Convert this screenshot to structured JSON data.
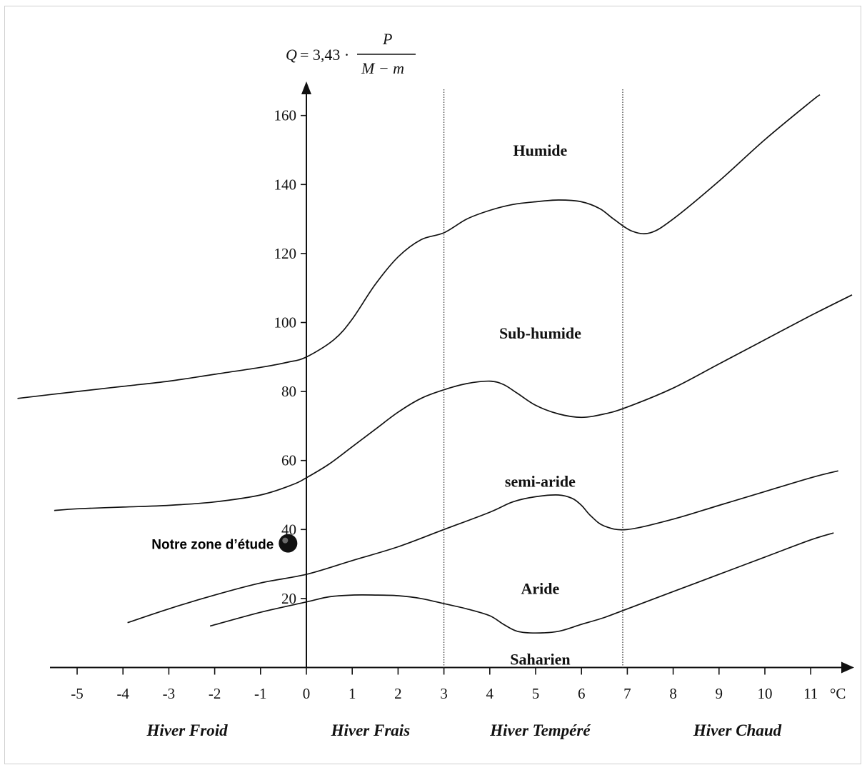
{
  "chart_data": {
    "type": "line",
    "title": "",
    "formula": {
      "lhs": "Q",
      "equals": " = 3,43 · ",
      "numerator": "P",
      "denominator": "M − m"
    },
    "xlabel": "°C",
    "ylabel": "",
    "xlim": [
      -6.4,
      11.8
    ],
    "ylim": [
      -1,
      172
    ],
    "x_ticks": [
      -5,
      -4,
      -3,
      -2,
      -1,
      0,
      1,
      2,
      3,
      4,
      5,
      6,
      7,
      8,
      9,
      10,
      11
    ],
    "y_ticks": [
      20,
      40,
      60,
      80,
      100,
      120,
      140,
      160
    ],
    "grid": false,
    "legend": "none",
    "dividers_x": [
      3,
      6.9
    ],
    "series": [
      {
        "points": [
          [
            -6.3,
            78
          ],
          [
            -5,
            80
          ],
          [
            -4,
            81.5
          ],
          [
            -3,
            83
          ],
          [
            -2,
            85
          ],
          [
            -1,
            87
          ],
          [
            -0.4,
            88.5
          ],
          [
            0,
            90
          ],
          [
            0.6,
            95
          ],
          [
            1,
            101
          ],
          [
            1.5,
            111
          ],
          [
            2,
            119
          ],
          [
            2.5,
            124
          ],
          [
            3,
            126
          ],
          [
            3.5,
            130
          ],
          [
            4,
            132.5
          ],
          [
            4.5,
            134.2
          ],
          [
            5,
            135
          ],
          [
            5.5,
            135.5
          ],
          [
            6,
            135
          ],
          [
            6.4,
            133
          ],
          [
            6.7,
            130
          ],
          [
            7.1,
            126.5
          ],
          [
            7.5,
            126
          ],
          [
            8,
            130
          ],
          [
            9,
            141
          ],
          [
            10,
            153
          ],
          [
            11,
            164
          ],
          [
            11.2,
            166
          ]
        ]
      },
      {
        "points": [
          [
            -5.5,
            45.5
          ],
          [
            -5,
            46
          ],
          [
            -4,
            46.5
          ],
          [
            -3,
            47
          ],
          [
            -2,
            48
          ],
          [
            -1,
            50
          ],
          [
            -0.3,
            53
          ],
          [
            0,
            55
          ],
          [
            0.5,
            59
          ],
          [
            1,
            64
          ],
          [
            1.5,
            69
          ],
          [
            2,
            74
          ],
          [
            2.5,
            78
          ],
          [
            3,
            80.5
          ],
          [
            3.5,
            82.3
          ],
          [
            4,
            83
          ],
          [
            4.3,
            82
          ],
          [
            4.6,
            79.5
          ],
          [
            5,
            76
          ],
          [
            5.5,
            73.5
          ],
          [
            6,
            72.5
          ],
          [
            6.5,
            73.5
          ],
          [
            7,
            75.5
          ],
          [
            8,
            81
          ],
          [
            9,
            88
          ],
          [
            10,
            95
          ],
          [
            11,
            102
          ],
          [
            11.9,
            108
          ]
        ]
      },
      {
        "points": [
          [
            -3.9,
            13
          ],
          [
            -3,
            17
          ],
          [
            -2,
            21
          ],
          [
            -1,
            24.5
          ],
          [
            0,
            27
          ],
          [
            1,
            31
          ],
          [
            2,
            35
          ],
          [
            3,
            40
          ],
          [
            4,
            45
          ],
          [
            4.5,
            48
          ],
          [
            5,
            49.5
          ],
          [
            5.5,
            50
          ],
          [
            5.8,
            49
          ],
          [
            6,
            47
          ],
          [
            6.2,
            44
          ],
          [
            6.5,
            41
          ],
          [
            7,
            40
          ],
          [
            8,
            43
          ],
          [
            9,
            47
          ],
          [
            10,
            51
          ],
          [
            11,
            55
          ],
          [
            11.6,
            57
          ]
        ]
      },
      {
        "points": [
          [
            -2.1,
            12
          ],
          [
            -1,
            16
          ],
          [
            0,
            19
          ],
          [
            0.5,
            20.5
          ],
          [
            1,
            21
          ],
          [
            1.5,
            21
          ],
          [
            2,
            20.8
          ],
          [
            2.5,
            20
          ],
          [
            3,
            18.5
          ],
          [
            3.5,
            17
          ],
          [
            4,
            15
          ],
          [
            4.3,
            12.5
          ],
          [
            4.6,
            10.5
          ],
          [
            5,
            10
          ],
          [
            5.5,
            10.5
          ],
          [
            6,
            12.5
          ],
          [
            6.5,
            14.5
          ],
          [
            7,
            17
          ],
          [
            8,
            22
          ],
          [
            9,
            27
          ],
          [
            10,
            32
          ],
          [
            11,
            37
          ],
          [
            11.5,
            39
          ]
        ]
      }
    ],
    "annotations": [
      {
        "text": "Humide",
        "x": 5.1,
        "y": 150
      },
      {
        "text": "Sub-humide",
        "x": 5.1,
        "y": 97
      },
      {
        "text": "semi-aride",
        "x": 5.1,
        "y": 54
      },
      {
        "text": "Aride",
        "x": 5.1,
        "y": 23
      },
      {
        "text": "Saharien",
        "x": 5.1,
        "y": 2.5
      }
    ],
    "marker": {
      "text": "Notre zone d’étude",
      "x": -0.4,
      "y": 36
    },
    "x_groups": [
      {
        "text": "Hiver Froid",
        "x": -2.6
      },
      {
        "text": "Hiver Frais",
        "x": 1.4
      },
      {
        "text": "Hiver Tempéré",
        "x": 5.1
      },
      {
        "text": "Hiver Chaud",
        "x": 9.4
      }
    ],
    "colors": {
      "line": "#111111",
      "marker": "#111111",
      "background": "#ffffff"
    }
  }
}
